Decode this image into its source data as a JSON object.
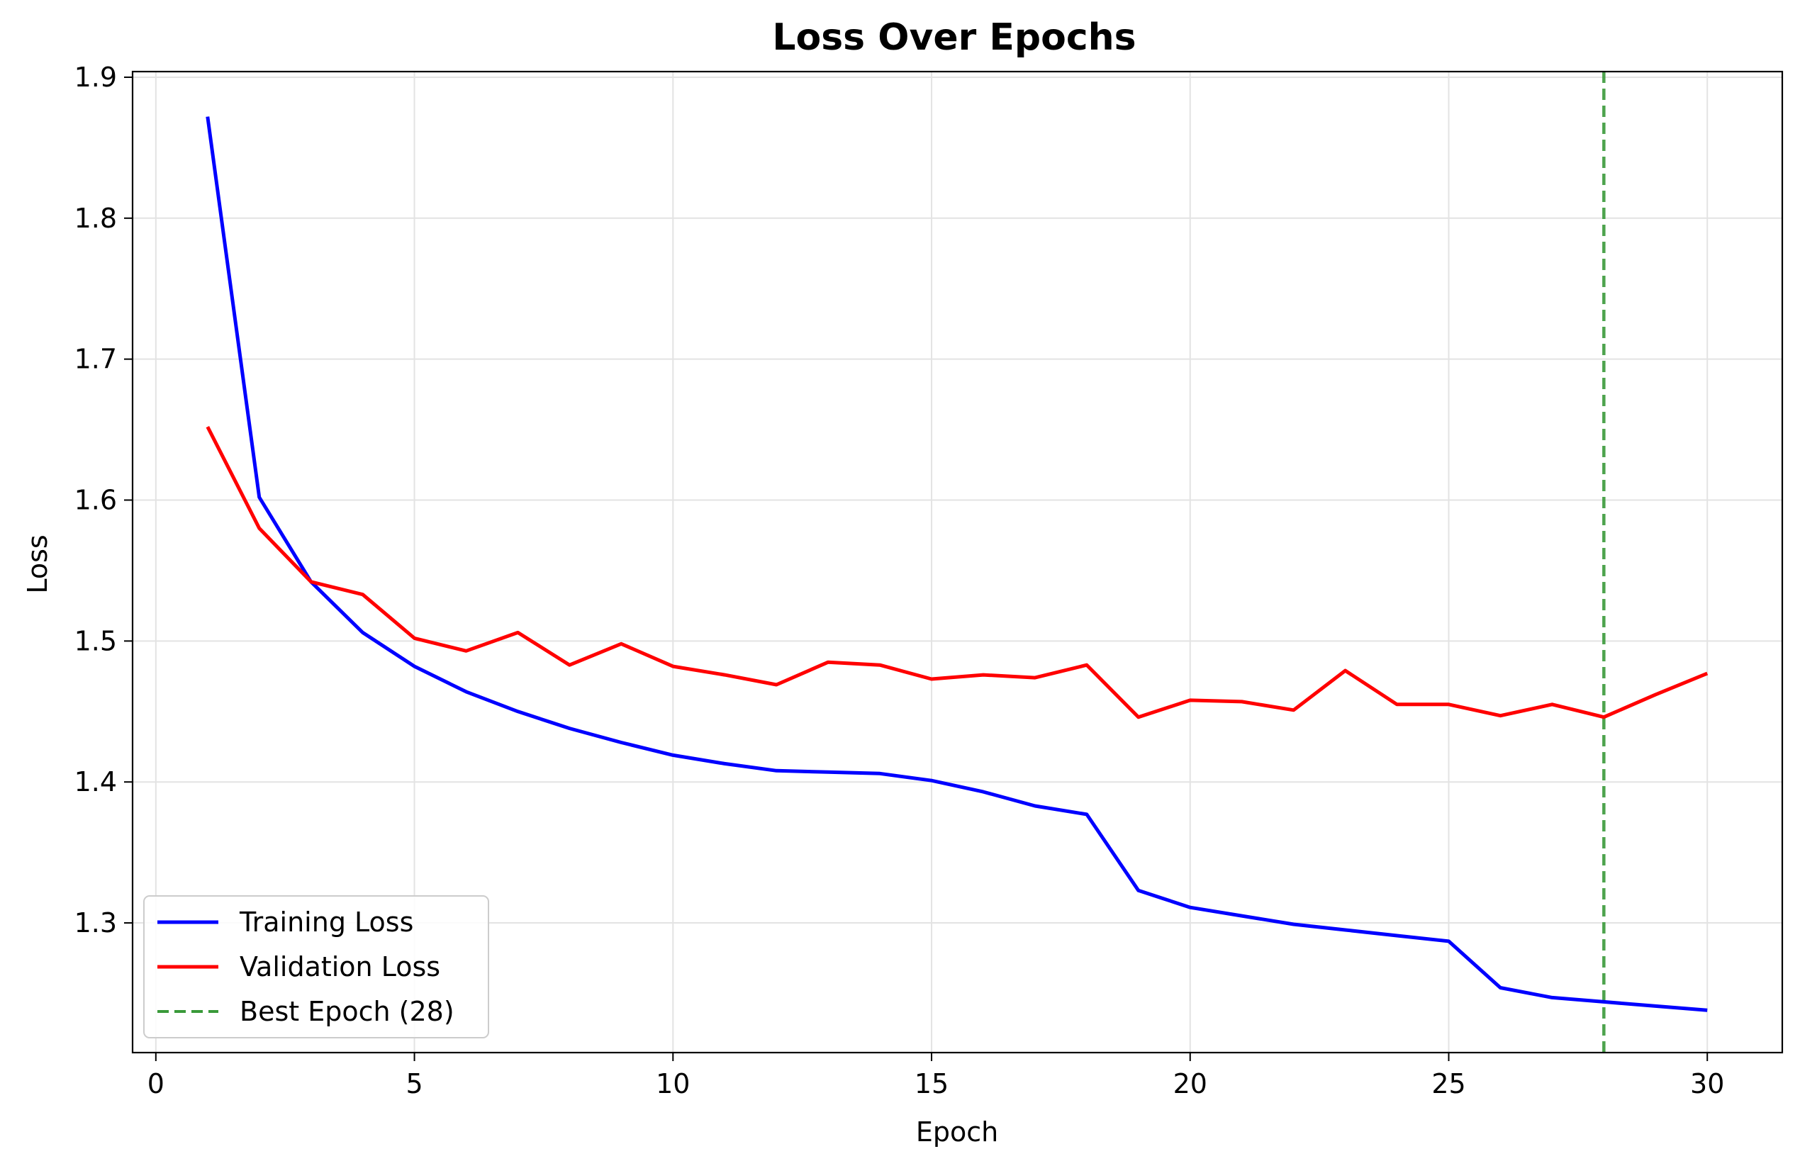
{
  "chart_data": {
    "type": "line",
    "title": "Loss Over Epochs",
    "xlabel": "Epoch",
    "ylabel": "Loss",
    "xlim": [
      -0.45,
      31.45
    ],
    "ylim": [
      1.208,
      1.904
    ],
    "xticks": [
      0,
      5,
      10,
      15,
      20,
      25,
      30
    ],
    "yticks": [
      1.3,
      1.4,
      1.5,
      1.6,
      1.7,
      1.8,
      1.9
    ],
    "xtick_labels": [
      "0",
      "5",
      "10",
      "15",
      "20",
      "25",
      "30"
    ],
    "ytick_labels": [
      "1.3",
      "1.4",
      "1.5",
      "1.6",
      "1.7",
      "1.8",
      "1.9"
    ],
    "grid": true,
    "legend_position": "lower-left",
    "x": [
      1,
      2,
      3,
      4,
      5,
      6,
      7,
      8,
      9,
      10,
      11,
      12,
      13,
      14,
      15,
      16,
      17,
      18,
      19,
      20,
      21,
      22,
      23,
      24,
      25,
      26,
      27,
      28,
      29,
      30
    ],
    "series": [
      {
        "name": "Training Loss",
        "color": "#0000ff",
        "style": "solid",
        "values": [
          1.872,
          1.602,
          1.542,
          1.506,
          1.482,
          1.464,
          1.45,
          1.438,
          1.428,
          1.419,
          1.413,
          1.408,
          1.407,
          1.406,
          1.401,
          1.393,
          1.383,
          1.377,
          1.323,
          1.311,
          1.305,
          1.299,
          1.295,
          1.291,
          1.287,
          1.254,
          1.247,
          1.244,
          1.241,
          1.238
        ]
      },
      {
        "name": "Validation Loss",
        "color": "#ff0000",
        "style": "solid",
        "values": [
          1.652,
          1.58,
          1.542,
          1.533,
          1.502,
          1.493,
          1.506,
          1.483,
          1.498,
          1.482,
          1.476,
          1.469,
          1.485,
          1.483,
          1.473,
          1.476,
          1.474,
          1.483,
          1.446,
          1.458,
          1.457,
          1.451,
          1.479,
          1.455,
          1.455,
          1.447,
          1.455,
          1.446,
          1.462,
          1.477
        ]
      }
    ],
    "reference_lines": [
      {
        "name": "Best Epoch (28)",
        "x": 28,
        "color": "#3a9a3a",
        "style": "dashed"
      }
    ],
    "legend": [
      "Training Loss",
      "Validation Loss",
      "Best Epoch (28)"
    ]
  }
}
